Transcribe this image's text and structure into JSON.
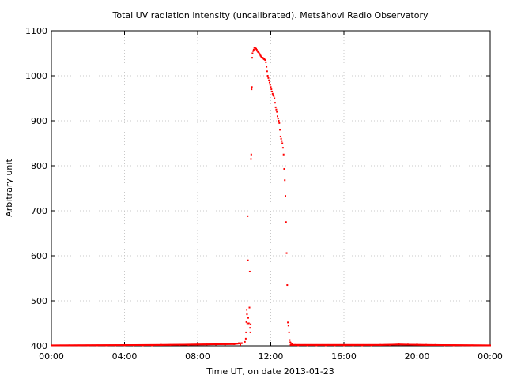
{
  "chart_data": {
    "type": "scatter",
    "title": "Total UV radiation intensity (uncalibrated). Metsähovi Radio Observatory",
    "xlabel": "Time UT, on date 2013-01-23",
    "ylabel": "Arbitrary unit",
    "xlim": [
      "00:00",
      "24:00"
    ],
    "ylim": [
      400,
      1100
    ],
    "x_ticks": [
      "00:00",
      "04:00",
      "08:00",
      "12:00",
      "16:00",
      "20:00",
      "00:00"
    ],
    "y_ticks": [
      400,
      500,
      600,
      700,
      800,
      900,
      1000,
      1100
    ],
    "grid": true,
    "marker_color": "#ff0000",
    "series": [
      {
        "points": [
          [
            "00:00",
            401
          ],
          [
            "00:30",
            401
          ],
          [
            "01:00",
            401
          ],
          [
            "01:30",
            401
          ],
          [
            "02:00",
            401
          ],
          [
            "02:30",
            401
          ],
          [
            "03:00",
            401
          ],
          [
            "03:30",
            401
          ],
          [
            "04:00",
            401
          ],
          [
            "04:30",
            401
          ],
          [
            "05:00",
            401
          ],
          [
            "05:30",
            401
          ],
          [
            "06:00",
            402
          ],
          [
            "06:30",
            402
          ],
          [
            "07:00",
            402
          ],
          [
            "07:30",
            402
          ],
          [
            "08:00",
            403
          ],
          [
            "08:30",
            403
          ],
          [
            "09:00",
            403
          ],
          [
            "09:30",
            403
          ],
          [
            "10:00",
            404
          ],
          [
            "10:15",
            406
          ],
          [
            "10:20",
            402
          ],
          [
            "10:25",
            406
          ],
          [
            "10:35",
            409
          ],
          [
            "10:38",
            416
          ],
          [
            "10:39",
            430
          ],
          [
            "10:40",
            453
          ],
          [
            "10:41",
            480
          ],
          [
            "10:42",
            470
          ],
          [
            "10:43",
            450
          ],
          [
            "10:44",
            688
          ],
          [
            "10:45",
            590
          ],
          [
            "10:46",
            462
          ],
          [
            "10:48",
            450
          ],
          [
            "10:50",
            485
          ],
          [
            "10:51",
            565
          ],
          [
            "10:52",
            440
          ],
          [
            "10:53",
            430
          ],
          [
            "10:54",
            448
          ],
          [
            "10:55",
            815
          ],
          [
            "10:56",
            825
          ],
          [
            "10:57",
            970
          ],
          [
            "10:58",
            975
          ],
          [
            "10:59",
            1040
          ],
          [
            "11:00",
            1050
          ],
          [
            "11:02",
            1055
          ],
          [
            "11:04",
            1058
          ],
          [
            "11:06",
            1062
          ],
          [
            "11:08",
            1063
          ],
          [
            "11:10",
            1061
          ],
          [
            "11:12",
            1060
          ],
          [
            "11:14",
            1058
          ],
          [
            "11:16",
            1055
          ],
          [
            "11:18",
            1053
          ],
          [
            "11:20",
            1052
          ],
          [
            "11:22",
            1050
          ],
          [
            "11:24",
            1048
          ],
          [
            "11:26",
            1045
          ],
          [
            "11:28",
            1043
          ],
          [
            "11:30",
            1042
          ],
          [
            "11:32",
            1040
          ],
          [
            "11:34",
            1040
          ],
          [
            "11:36",
            1038
          ],
          [
            "11:38",
            1037
          ],
          [
            "11:40",
            1036
          ],
          [
            "11:42",
            1035
          ],
          [
            "11:44",
            1030
          ],
          [
            "11:46",
            1020
          ],
          [
            "11:48",
            1010
          ],
          [
            "11:50",
            1000
          ],
          [
            "11:52",
            995
          ],
          [
            "11:54",
            990
          ],
          [
            "11:56",
            985
          ],
          [
            "11:58",
            980
          ],
          [
            "12:00",
            975
          ],
          [
            "12:02",
            970
          ],
          [
            "12:04",
            965
          ],
          [
            "12:06",
            960
          ],
          [
            "12:08",
            957
          ],
          [
            "12:10",
            955
          ],
          [
            "12:12",
            950
          ],
          [
            "12:14",
            940
          ],
          [
            "12:16",
            930
          ],
          [
            "12:18",
            925
          ],
          [
            "12:20",
            920
          ],
          [
            "12:22",
            910
          ],
          [
            "12:24",
            905
          ],
          [
            "12:26",
            900
          ],
          [
            "12:28",
            895
          ],
          [
            "12:30",
            880
          ],
          [
            "12:32",
            865
          ],
          [
            "12:34",
            860
          ],
          [
            "12:36",
            855
          ],
          [
            "12:38",
            850
          ],
          [
            "12:40",
            840
          ],
          [
            "12:42",
            825
          ],
          [
            "12:44",
            793
          ],
          [
            "12:46",
            768
          ],
          [
            "12:48",
            733
          ],
          [
            "12:50",
            675
          ],
          [
            "12:52",
            606
          ],
          [
            "12:54",
            535
          ],
          [
            "12:56",
            452
          ],
          [
            "12:58",
            445
          ],
          [
            "13:00",
            430
          ],
          [
            "13:02",
            413
          ],
          [
            "13:04",
            408
          ],
          [
            "13:06",
            406
          ],
          [
            "13:10",
            404
          ],
          [
            "13:20",
            402
          ],
          [
            "13:30",
            401
          ],
          [
            "14:00",
            401
          ],
          [
            "14:30",
            401
          ],
          [
            "15:00",
            401
          ],
          [
            "15:30",
            401
          ],
          [
            "16:00",
            401
          ],
          [
            "16:30",
            401
          ],
          [
            "17:00",
            401
          ],
          [
            "17:30",
            401
          ],
          [
            "18:00",
            402
          ],
          [
            "18:30",
            402
          ],
          [
            "19:00",
            403
          ],
          [
            "19:30",
            403
          ],
          [
            "20:00",
            403
          ],
          [
            "20:30",
            402
          ],
          [
            "21:00",
            402
          ],
          [
            "21:30",
            401
          ],
          [
            "22:00",
            401
          ],
          [
            "22:30",
            401
          ],
          [
            "23:00",
            401
          ],
          [
            "23:30",
            401
          ],
          [
            "24:00",
            401
          ]
        ]
      }
    ]
  }
}
